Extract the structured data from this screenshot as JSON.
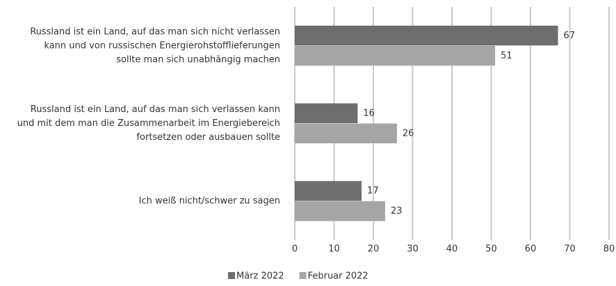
{
  "chart_data": {
    "type": "hbar",
    "categories": [
      [
        "Russland ist ein Land, auf das man sich nicht verlassen",
        "kann und von russischen Energierohstofflieferungen",
        "sollte man sich unabhängig machen"
      ],
      [
        "Russland ist ein Land, auf das man sich verlassen kann",
        "und mit dem man die Zusammenarbeit im Energiebereich",
        "fortsetzen oder ausbauen sollte"
      ],
      [
        "Ich weiß nicht/schwer zu sagen"
      ]
    ],
    "series": [
      {
        "name": "März 2022",
        "color": "#6e6e6e",
        "values": [
          67,
          16,
          17
        ]
      },
      {
        "name": "Februar 2022",
        "color": "#a5a5a5",
        "values": [
          51,
          26,
          23
        ]
      }
    ],
    "xlim": [
      0,
      80
    ],
    "xticks": [
      0,
      10,
      20,
      30,
      40,
      50,
      60,
      70,
      80
    ],
    "grid": true,
    "legend": "bottom"
  }
}
